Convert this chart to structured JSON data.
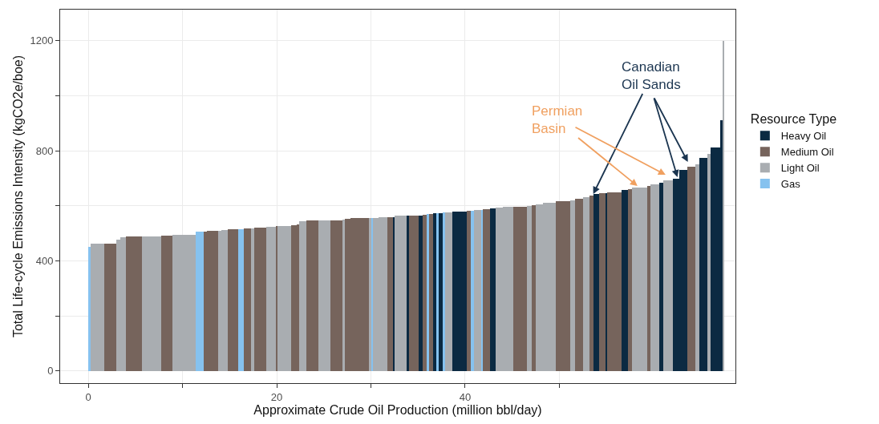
{
  "chart_data": {
    "type": "histogram",
    "xlabel": "Approximate Crude Oil Production (million bbl/day)",
    "ylabel": "Total Life-cycle Emissions Intensity (kgCO2e/boe)",
    "legend_title": "Resource Type",
    "legend": "right",
    "grid": true,
    "xlim": [
      -3.0,
      68.7
    ],
    "ylim": [
      -44,
      1313
    ],
    "xticks": [
      0,
      20,
      40,
      {
        "value": 10,
        "label": null
      },
      {
        "value": 30,
        "label": null
      },
      {
        "value": 50,
        "label": null
      }
    ],
    "yticks": [
      0,
      400,
      800,
      1200,
      {
        "value": 200,
        "label": null
      },
      {
        "value": 600,
        "label": null
      },
      {
        "value": 1000,
        "label": null
      }
    ],
    "bins": [
      0,
      0.2,
      1.7,
      3.0,
      3.4,
      4.0,
      5.7,
      7.7,
      8.9,
      11.4,
      12.2,
      12.6,
      13.8,
      14.1,
      14.8,
      15.9,
      16.5,
      17.3,
      17.6,
      18.9,
      19.9,
      20.1,
      21.5,
      22.1,
      22.4,
      23.1,
      24.4,
      25.7,
      27.0,
      27.2,
      27.8,
      29.8,
      30.0,
      30.2,
      30.8,
      31.7,
      32.3,
      32.5,
      33.8,
      34.0,
      35.1,
      35.5,
      35.9,
      36.2,
      36.6,
      36.9,
      37.2,
      37.6,
      37.9,
      38.6,
      40.2,
      40.6,
      40.9,
      41.7,
      41.9,
      42.6,
      43.2,
      44.0,
      45.1,
      46.6,
      47.1,
      47.5,
      48.3,
      49.6,
      51.2,
      51.7,
      52.5,
      53.2,
      53.6,
      54.2,
      54.9,
      55.1,
      56.6,
      57.3,
      57.7,
      59.3,
      59.7,
      60.6,
      61.0,
      62.1,
      62.7,
      63.6,
      64.4,
      64.9,
      65.7,
      66.1,
      67.1,
      67.3,
      67.5
    ],
    "series": [
      {
        "name": "Heavy Oil",
        "color": "#0b2a42",
        "values": [
          null,
          null,
          null,
          null,
          null,
          null,
          null,
          null,
          null,
          null,
          null,
          null,
          null,
          null,
          null,
          null,
          null,
          null,
          null,
          null,
          null,
          null,
          null,
          null,
          null,
          null,
          null,
          null,
          null,
          null,
          null,
          null,
          null,
          null,
          null,
          null,
          560,
          null,
          565,
          null,
          566,
          null,
          null,
          null,
          572,
          null,
          574,
          null,
          null,
          579,
          null,
          null,
          null,
          null,
          null,
          591,
          null,
          null,
          null,
          null,
          null,
          null,
          null,
          null,
          null,
          null,
          null,
          null,
          643,
          null,
          647,
          null,
          658,
          null,
          null,
          null,
          null,
          684,
          null,
          699,
          731,
          null,
          null,
          774,
          null,
          812,
          910,
          null
        ]
      },
      {
        "name": "Medium Oil",
        "color": "#76645c",
        "values": [
          null,
          null,
          463,
          null,
          null,
          488,
          null,
          491,
          null,
          null,
          507,
          510,
          null,
          null,
          514,
          null,
          518,
          null,
          521,
          null,
          528,
          null,
          530,
          533,
          null,
          547,
          null,
          547,
          null,
          553,
          556,
          null,
          null,
          null,
          null,
          559,
          null,
          null,
          null,
          565,
          null,
          568,
          null,
          571,
          null,
          null,
          null,
          null,
          null,
          null,
          582,
          null,
          null,
          null,
          588,
          null,
          null,
          null,
          597,
          null,
          603,
          null,
          null,
          617,
          null,
          626,
          null,
          637,
          null,
          645,
          null,
          649,
          null,
          662,
          null,
          672,
          null,
          null,
          null,
          null,
          null,
          742,
          null,
          null,
          null,
          null,
          null,
          null
        ]
      },
      {
        "name": "Light Oil",
        "color": "#a9adb1",
        "values": [
          null,
          462,
          null,
          478,
          485,
          null,
          489,
          null,
          495,
          null,
          null,
          null,
          510,
          513,
          null,
          null,
          null,
          519,
          null,
          523,
          null,
          528,
          null,
          null,
          544,
          null,
          547,
          null,
          550,
          null,
          null,
          556,
          null,
          556,
          559,
          null,
          null,
          565,
          null,
          null,
          null,
          null,
          null,
          null,
          null,
          null,
          null,
          null,
          576,
          null,
          null,
          null,
          585,
          null,
          null,
          null,
          594,
          597,
          null,
          600,
          null,
          606,
          611,
          null,
          621,
          null,
          632,
          null,
          null,
          null,
          null,
          null,
          null,
          null,
          667,
          null,
          678,
          null,
          693,
          null,
          null,
          null,
          750,
          null,
          790,
          null,
          null,
          1200
        ]
      },
      {
        "name": "Gas",
        "color": "#86c2ef",
        "values": [
          450,
          null,
          null,
          null,
          null,
          null,
          null,
          null,
          null,
          505,
          null,
          null,
          null,
          null,
          null,
          516,
          null,
          null,
          null,
          null,
          null,
          null,
          null,
          null,
          null,
          null,
          null,
          null,
          null,
          null,
          null,
          null,
          556,
          null,
          null,
          null,
          null,
          null,
          null,
          null,
          null,
          null,
          570,
          null,
          null,
          573,
          null,
          575,
          null,
          null,
          null,
          583,
          null,
          586,
          null,
          null,
          null,
          null,
          null,
          null,
          null,
          null,
          null,
          null,
          null,
          null,
          null,
          null,
          null,
          null,
          null,
          null,
          null,
          null,
          null,
          null,
          null,
          null,
          null,
          null,
          null,
          null,
          null,
          null,
          null,
          null,
          null,
          null
        ]
      }
    ],
    "annotations": [
      {
        "text": "Canadian\nOil Sands",
        "x": 53.6,
        "y": 643
      },
      {
        "text": "Permian\nBasin",
        "x": 58.3,
        "y": 672
      }
    ]
  }
}
